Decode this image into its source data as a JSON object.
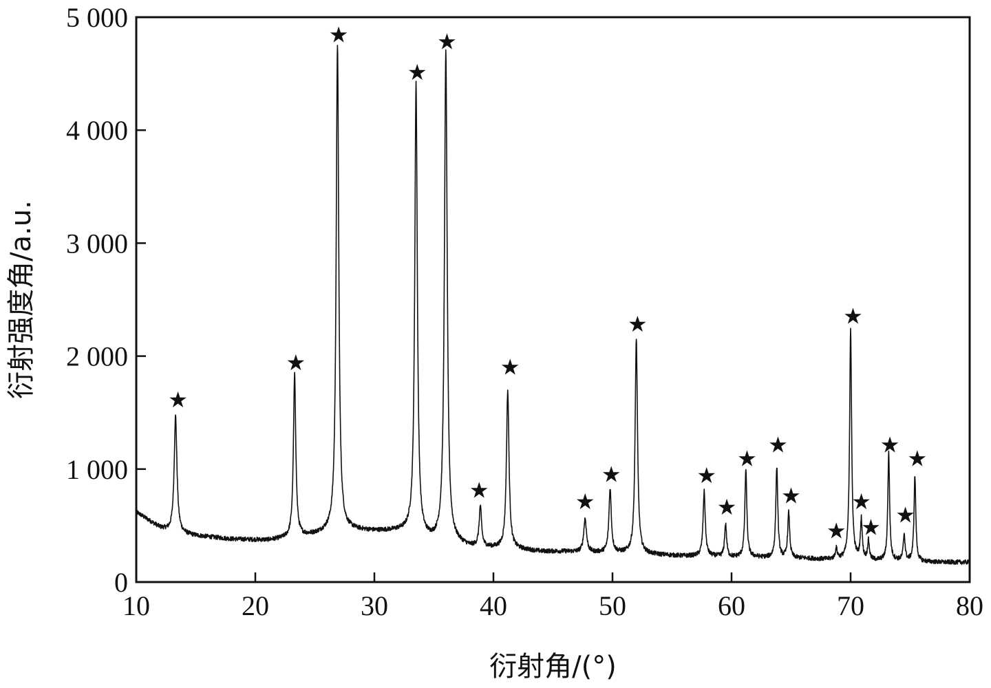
{
  "chart_data": {
    "type": "line",
    "xlabel": "衍射角/(°)",
    "ylabel": "衍射强度角/a.u.",
    "xlim": [
      10,
      80
    ],
    "ylim": [
      0,
      5000
    ],
    "x_ticks": [
      10,
      20,
      30,
      40,
      50,
      60,
      70,
      80
    ],
    "x_tick_labels": [
      "10",
      "20",
      "30",
      "40",
      "50",
      "60",
      "70",
      "80"
    ],
    "y_ticks": [
      0,
      1000,
      2000,
      3000,
      4000,
      5000
    ],
    "y_tick_labels": [
      "0",
      "1 000",
      "2 000",
      "3 000",
      "4 000",
      "5 000"
    ],
    "grid": false,
    "marker_symbol": "★",
    "line_color": "#111111",
    "baseline": [
      [
        10,
        620
      ],
      [
        12,
        480
      ],
      [
        13,
        440
      ],
      [
        15,
        410
      ],
      [
        18,
        380
      ],
      [
        21,
        370
      ],
      [
        23,
        390
      ],
      [
        25,
        420
      ],
      [
        26,
        440
      ],
      [
        28,
        460
      ],
      [
        30,
        450
      ],
      [
        32,
        450
      ],
      [
        33,
        440
      ],
      [
        34,
        390
      ],
      [
        35,
        360
      ],
      [
        37,
        340
      ],
      [
        38,
        310
      ],
      [
        40,
        300
      ],
      [
        42,
        290
      ],
      [
        44,
        270
      ],
      [
        46,
        270
      ],
      [
        48,
        260
      ],
      [
        50,
        260
      ],
      [
        52,
        250
      ],
      [
        54,
        240
      ],
      [
        56,
        230
      ],
      [
        58,
        230
      ],
      [
        60,
        220
      ],
      [
        62,
        220
      ],
      [
        64,
        210
      ],
      [
        66,
        210
      ],
      [
        68,
        200
      ],
      [
        70,
        200
      ],
      [
        72,
        190
      ],
      [
        74,
        190
      ],
      [
        76,
        180
      ],
      [
        78,
        175
      ],
      [
        80,
        175
      ]
    ],
    "peaks": [
      {
        "x": 13.3,
        "y": 1470,
        "w": 0.14
      },
      {
        "x": 23.3,
        "y": 1830,
        "w": 0.12
      },
      {
        "x": 26.9,
        "y": 4760,
        "w": 0.13
      },
      {
        "x": 33.5,
        "y": 4400,
        "w": 0.13
      },
      {
        "x": 36.0,
        "y": 4680,
        "w": 0.14
      },
      {
        "x": 38.9,
        "y": 660,
        "w": 0.12
      },
      {
        "x": 41.2,
        "y": 1690,
        "w": 0.13
      },
      {
        "x": 47.7,
        "y": 560,
        "w": 0.14
      },
      {
        "x": 49.8,
        "y": 820,
        "w": 0.12
      },
      {
        "x": 52.0,
        "y": 2150,
        "w": 0.12
      },
      {
        "x": 57.7,
        "y": 800,
        "w": 0.11
      },
      {
        "x": 59.5,
        "y": 510,
        "w": 0.1
      },
      {
        "x": 61.2,
        "y": 990,
        "w": 0.1
      },
      {
        "x": 63.8,
        "y": 1020,
        "w": 0.1
      },
      {
        "x": 64.8,
        "y": 610,
        "w": 0.1
      },
      {
        "x": 68.8,
        "y": 290,
        "w": 0.1
      },
      {
        "x": 70.0,
        "y": 2240,
        "w": 0.1
      },
      {
        "x": 70.9,
        "y": 550,
        "w": 0.09
      },
      {
        "x": 71.5,
        "y": 360,
        "w": 0.09
      },
      {
        "x": 73.2,
        "y": 1140,
        "w": 0.09
      },
      {
        "x": 74.5,
        "y": 420,
        "w": 0.09
      },
      {
        "x": 75.4,
        "y": 940,
        "w": 0.09
      }
    ],
    "markers": [
      {
        "x": 13.5,
        "y": 1620
      },
      {
        "x": 23.4,
        "y": 1950
      },
      {
        "x": 27.0,
        "y": 4850
      },
      {
        "x": 33.6,
        "y": 4520
      },
      {
        "x": 36.1,
        "y": 4790
      },
      {
        "x": 38.8,
        "y": 820
      },
      {
        "x": 41.4,
        "y": 1910
      },
      {
        "x": 47.7,
        "y": 720
      },
      {
        "x": 49.9,
        "y": 960
      },
      {
        "x": 52.1,
        "y": 2290
      },
      {
        "x": 57.9,
        "y": 950
      },
      {
        "x": 59.6,
        "y": 670
      },
      {
        "x": 61.3,
        "y": 1100
      },
      {
        "x": 63.9,
        "y": 1220
      },
      {
        "x": 65.0,
        "y": 770
      },
      {
        "x": 68.8,
        "y": 460
      },
      {
        "x": 70.2,
        "y": 2360
      },
      {
        "x": 70.9,
        "y": 720
      },
      {
        "x": 71.7,
        "y": 490
      },
      {
        "x": 73.3,
        "y": 1220
      },
      {
        "x": 74.6,
        "y": 600
      },
      {
        "x": 75.6,
        "y": 1100
      }
    ]
  }
}
